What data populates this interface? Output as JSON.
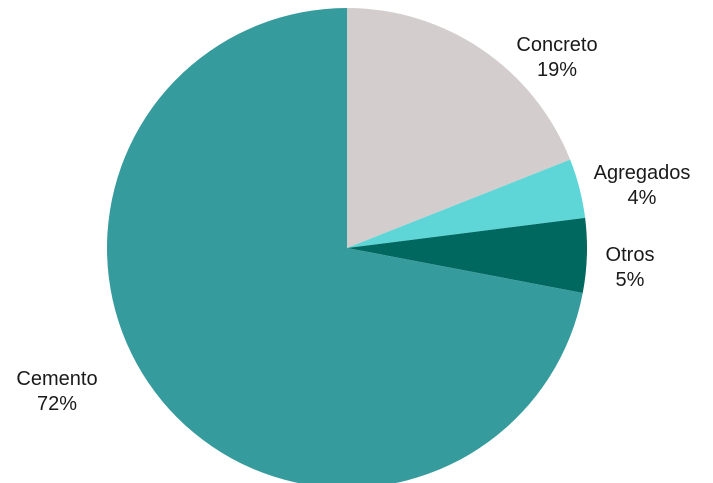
{
  "chart_data": {
    "type": "pie",
    "title": "",
    "legend": "none",
    "start": "12 o'clock, clockwise",
    "slices": [
      {
        "label": "Concreto",
        "value": 19,
        "value_label": "19%",
        "color": "#d3cdcd"
      },
      {
        "label": "Agregados",
        "value": 4,
        "value_label": "4%",
        "color": "#5ed6d8"
      },
      {
        "label": "Otros",
        "value": 5,
        "value_label": "5%",
        "color": "#00685f"
      },
      {
        "label": "Cemento",
        "value": 72,
        "value_label": "72%",
        "color": "#369b9d"
      }
    ]
  }
}
